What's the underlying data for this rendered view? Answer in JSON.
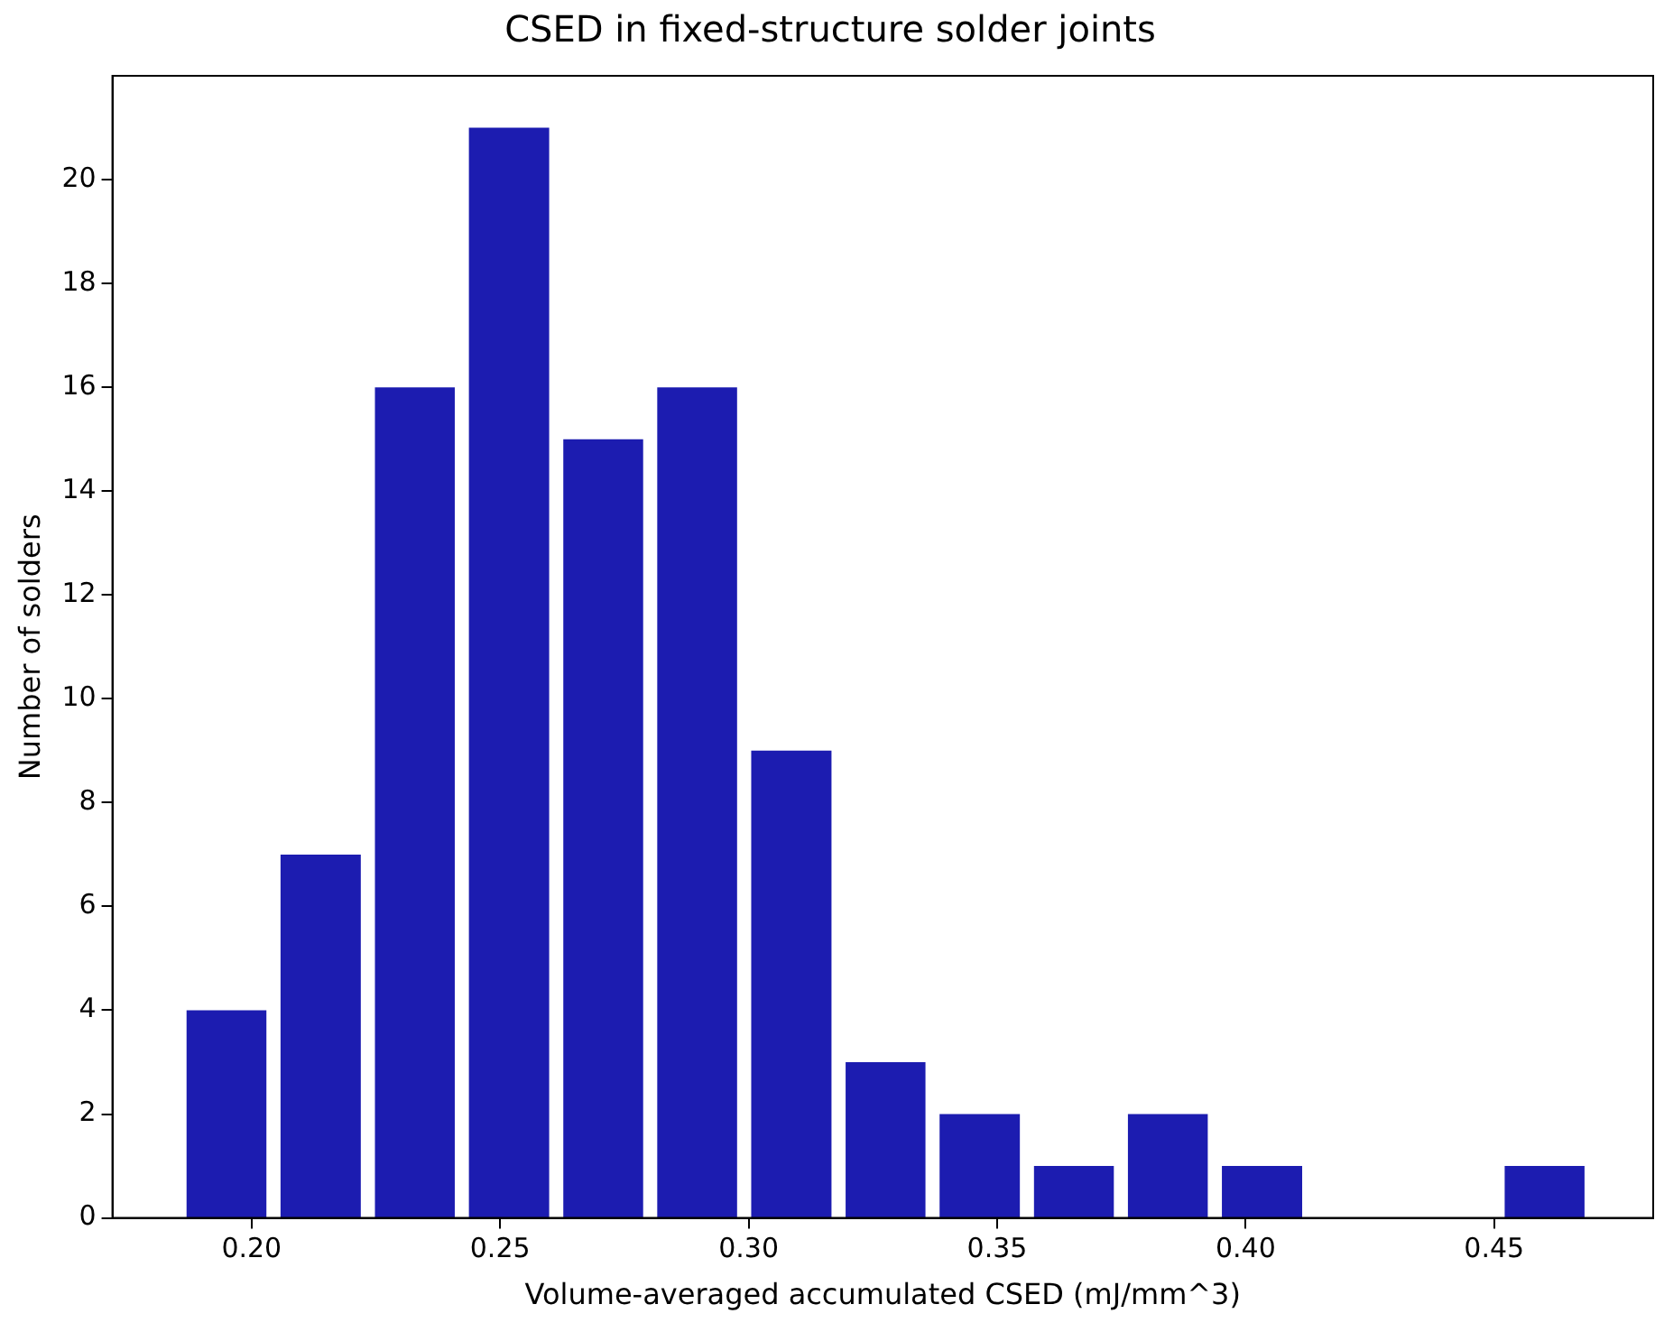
{
  "chart_data": {
    "type": "histogram",
    "title": "CSED in fixed-structure solder joints",
    "xlabel": "Volume-averaged accumulated CSED (mJ/mm^3)",
    "ylabel": "Number of solders",
    "bins": [
      0.1855,
      0.2044,
      0.2234,
      0.2423,
      0.2613,
      0.2802,
      0.2991,
      0.3181,
      0.337,
      0.356,
      0.3749,
      0.3938,
      0.4128,
      0.4507,
      0.4696
    ],
    "values": [
      4,
      7,
      16,
      21,
      15,
      16,
      9,
      3,
      2,
      1,
      2,
      1,
      0,
      1
    ],
    "color": "#1c1cb0",
    "xlim": [
      0.172,
      0.482
    ],
    "xticks": [
      {
        "value": 0.2,
        "label": "0.20"
      },
      0.25,
      {
        "value": 0.3,
        "label": "0.30"
      },
      0.35,
      {
        "value": 0.4,
        "label": "0.40"
      },
      0.45
    ],
    "ylim": [
      0,
      22
    ],
    "yticks": [
      0,
      2,
      4,
      6,
      8,
      10,
      12,
      14,
      16,
      18,
      20
    ],
    "grid": false,
    "legend": false
  }
}
